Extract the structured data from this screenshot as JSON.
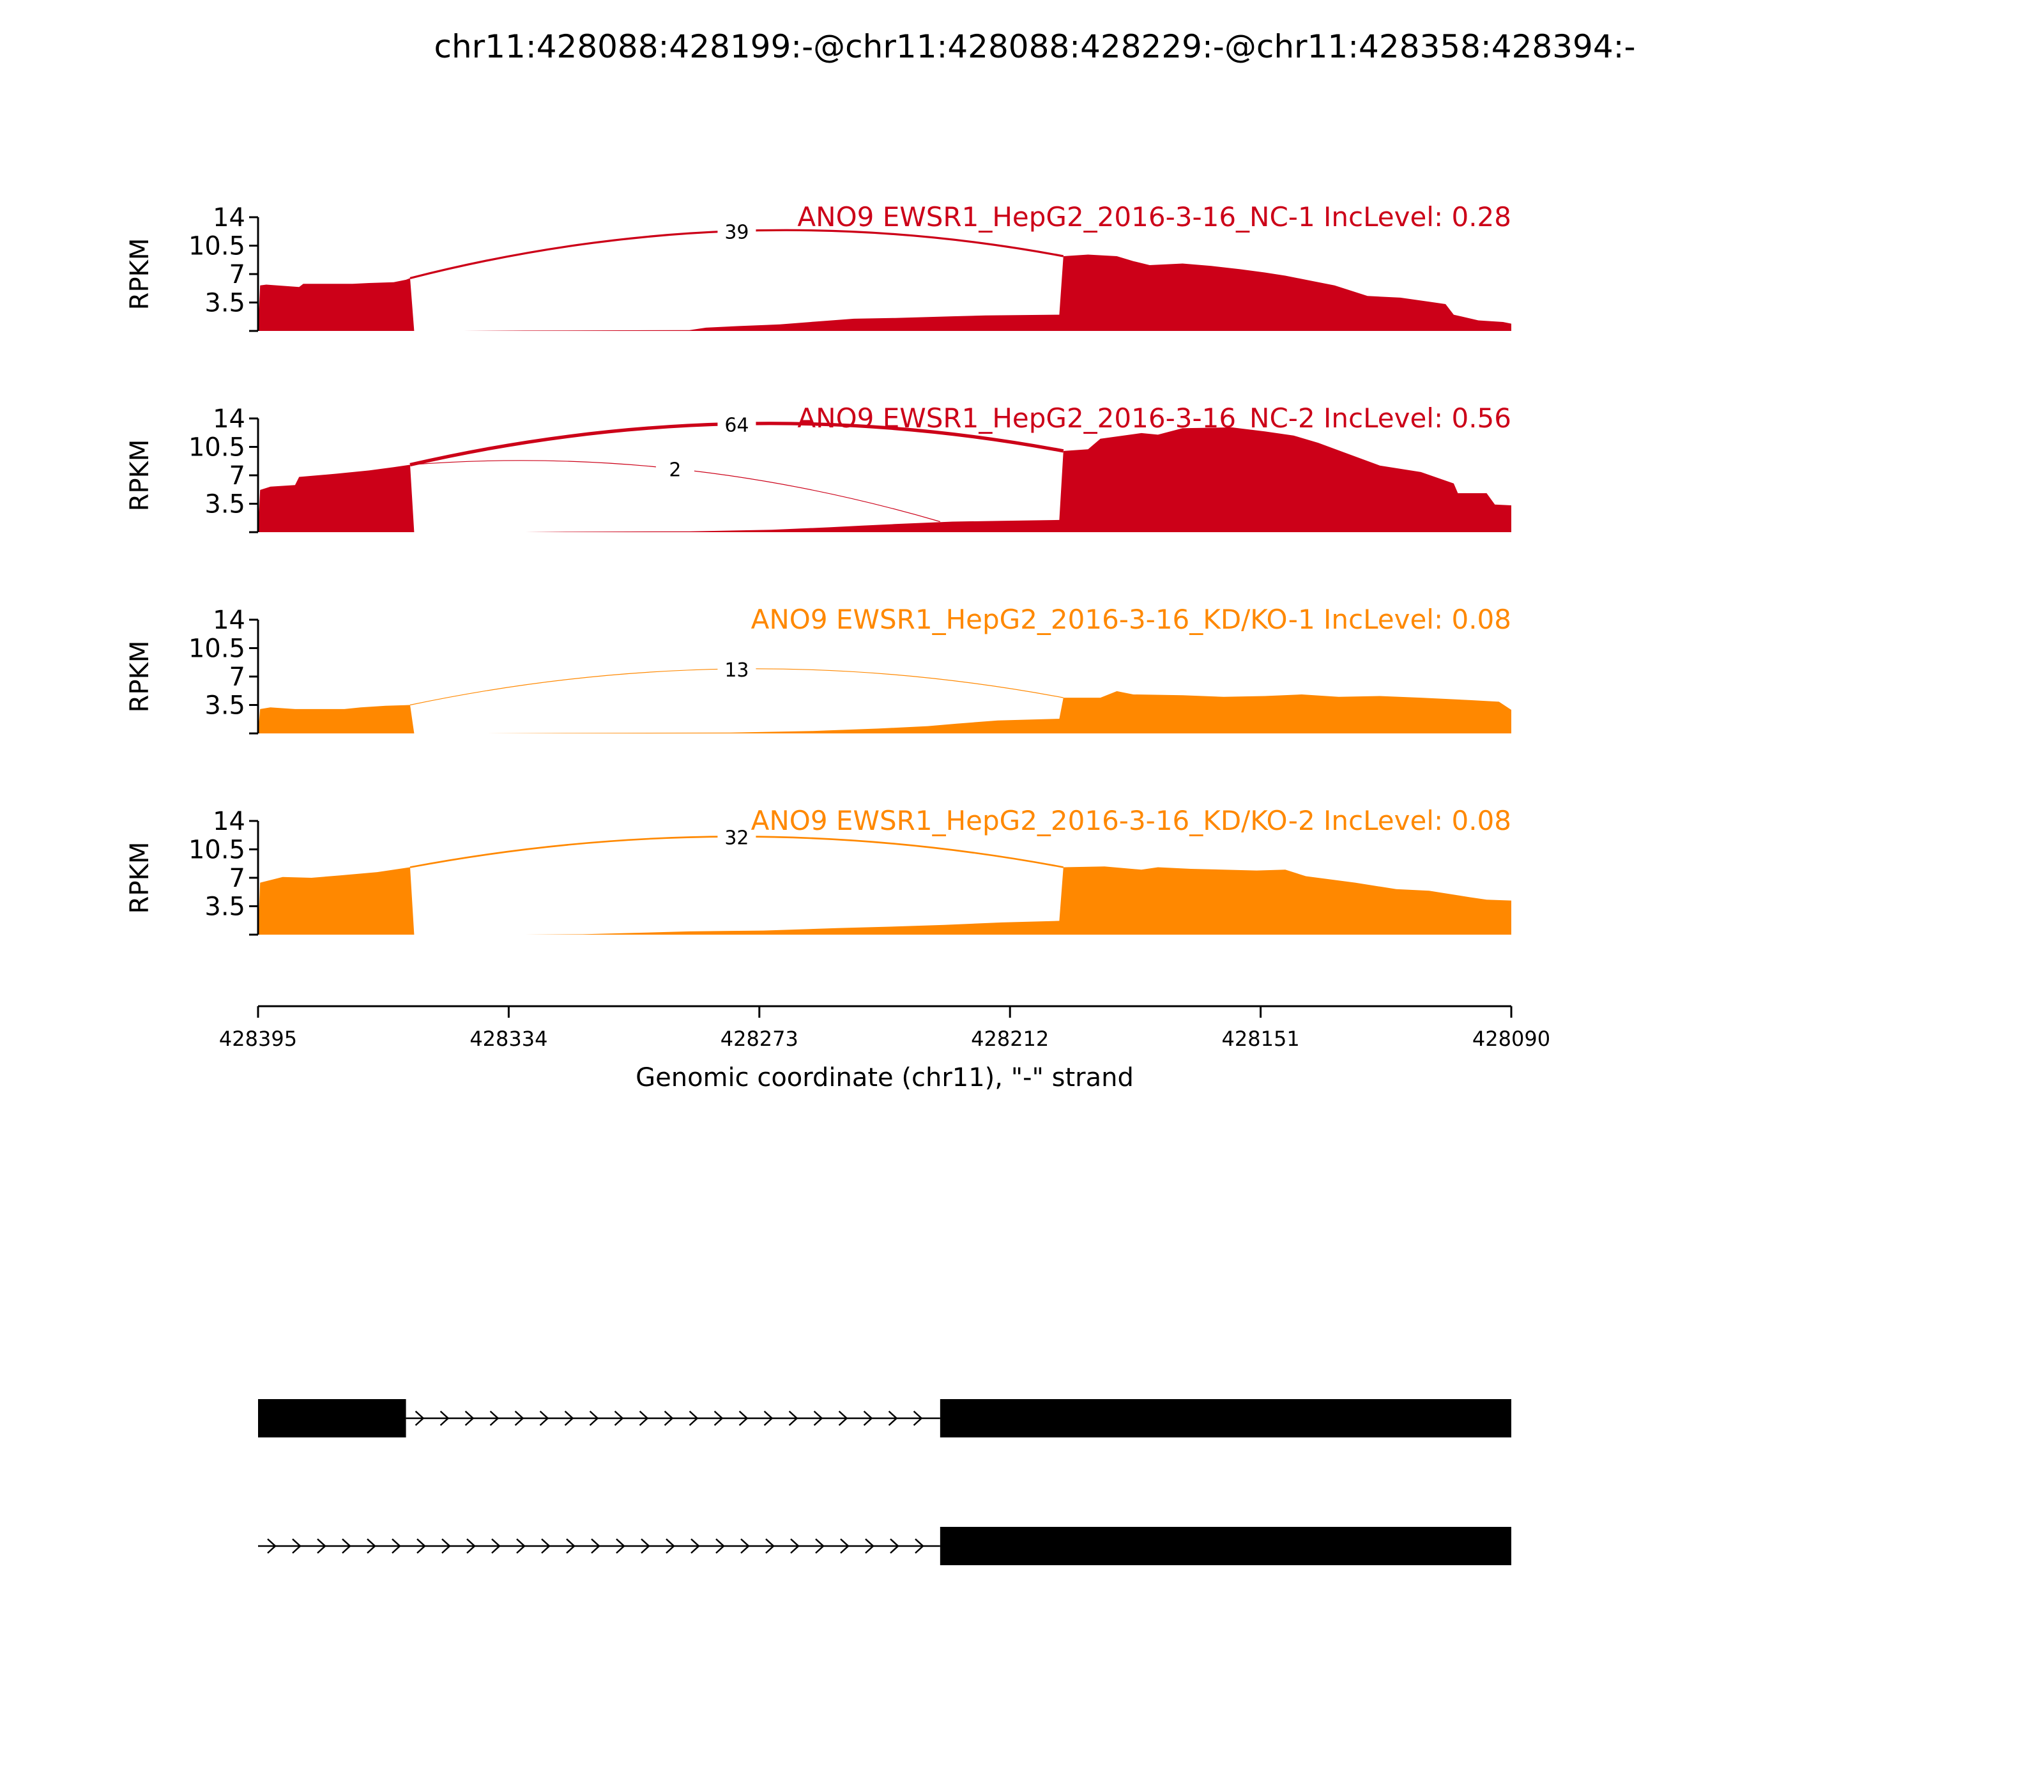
{
  "figure": {
    "title": "chr11:428088:428199:-@chr11:428088:428229:-@chr11:428358:428394:-",
    "colors": {
      "nc": "#cc0018",
      "kd": "#ff8800",
      "axis": "#000000",
      "gene_model": "#000000"
    }
  },
  "chart_data": {
    "type": "area",
    "description_free": true,
    "x_axis": {
      "label": "Genomic coordinate (chr11), \"-\" strand",
      "range": [
        428395,
        428090
      ],
      "reversed": true,
      "ticks": [
        428395,
        428334,
        428273,
        428212,
        428151,
        428090
      ]
    },
    "y_axis": {
      "label": "RPKM",
      "range": [
        0,
        14
      ],
      "ticks": [
        "3.5",
        "7",
        "10.5",
        "14"
      ],
      "tick_values": [
        3.5,
        7,
        10.5,
        14
      ]
    },
    "panels": [
      {
        "label": "ANO9 EWSR1_HepG2_2016-3-16_NC-1 IncLevel: 0.28",
        "color_key": "nc",
        "coverage": [
          [
            428395,
            0
          ],
          [
            428394.5,
            5.6
          ],
          [
            428393,
            5.7
          ],
          [
            428385,
            5.4
          ],
          [
            428384,
            5.8
          ],
          [
            428372,
            5.8
          ],
          [
            428368,
            5.9
          ],
          [
            428362,
            6.0
          ],
          [
            428359,
            6.3
          ],
          [
            428358,
            6.5
          ],
          [
            428357,
            0
          ],
          [
            428345,
            0
          ],
          [
            428330,
            0.05
          ],
          [
            428290,
            0.1
          ],
          [
            428286,
            0.4
          ],
          [
            428278,
            0.6
          ],
          [
            428268,
            0.8
          ],
          [
            428258,
            1.2
          ],
          [
            428250,
            1.5
          ],
          [
            428240,
            1.6
          ],
          [
            428226,
            1.8
          ],
          [
            428218,
            1.9
          ],
          [
            428200,
            2.0
          ],
          [
            428199,
            9.2
          ],
          [
            428193,
            9.4
          ],
          [
            428186,
            9.2
          ],
          [
            428182,
            8.6
          ],
          [
            428178,
            8.1
          ],
          [
            428170,
            8.3
          ],
          [
            428163,
            8.0
          ],
          [
            428156,
            7.6
          ],
          [
            428150,
            7.2
          ],
          [
            428145,
            6.8
          ],
          [
            428140,
            6.3
          ],
          [
            428133,
            5.6
          ],
          [
            428125,
            4.3
          ],
          [
            428117,
            4.1
          ],
          [
            428110,
            3.6
          ],
          [
            428106,
            3.3
          ],
          [
            428104,
            2.0
          ],
          [
            428098,
            1.3
          ],
          [
            428092,
            1.1
          ],
          [
            428090,
            0.9
          ]
        ],
        "junctions": [
          {
            "from": 428358,
            "to": 428199,
            "count": "39",
            "count_value": 39
          }
        ]
      },
      {
        "label": "ANO9 EWSR1_HepG2_2016-3-16_NC-2 IncLevel: 0.56",
        "color_key": "nc",
        "coverage": [
          [
            428395,
            0
          ],
          [
            428394.5,
            5.2
          ],
          [
            428392,
            5.6
          ],
          [
            428386,
            5.8
          ],
          [
            428385,
            6.8
          ],
          [
            428376,
            7.2
          ],
          [
            428368,
            7.6
          ],
          [
            428362,
            8.0
          ],
          [
            428358,
            8.3
          ],
          [
            428357,
            0
          ],
          [
            428330,
            0
          ],
          [
            428320,
            0.05
          ],
          [
            428290,
            0.1
          ],
          [
            428270,
            0.3
          ],
          [
            428256,
            0.6
          ],
          [
            428248,
            0.8
          ],
          [
            428240,
            1.0
          ],
          [
            428226,
            1.3
          ],
          [
            428214,
            1.4
          ],
          [
            428200,
            1.5
          ],
          [
            428199,
            10.0
          ],
          [
            428193,
            10.2
          ],
          [
            428190,
            11.5
          ],
          [
            428180,
            12.2
          ],
          [
            428176,
            12.0
          ],
          [
            428170,
            12.8
          ],
          [
            428158,
            12.9
          ],
          [
            428150,
            12.4
          ],
          [
            428143,
            11.9
          ],
          [
            428137,
            11.0
          ],
          [
            428130,
            9.7
          ],
          [
            428122,
            8.2
          ],
          [
            428112,
            7.4
          ],
          [
            428104,
            6.0
          ],
          [
            428103,
            4.8
          ],
          [
            428096,
            4.8
          ],
          [
            428094,
            3.4
          ],
          [
            428090,
            3.3
          ]
        ],
        "junctions": [
          {
            "from": 428358,
            "to": 428199,
            "count": "64",
            "count_value": 64
          },
          {
            "from": 428358,
            "to": 428229,
            "count": "2",
            "count_value": 2
          }
        ]
      },
      {
        "label": "ANO9 EWSR1_HepG2_2016-3-16_KD/KO-1 IncLevel: 0.08",
        "color_key": "kd",
        "coverage": [
          [
            428395,
            0
          ],
          [
            428394.5,
            3.0
          ],
          [
            428392,
            3.2
          ],
          [
            428386,
            3.0
          ],
          [
            428374,
            3.0
          ],
          [
            428370,
            3.2
          ],
          [
            428364,
            3.4
          ],
          [
            428358,
            3.5
          ],
          [
            428357,
            0
          ],
          [
            428340,
            0
          ],
          [
            428320,
            0.05
          ],
          [
            428280,
            0.1
          ],
          [
            428260,
            0.3
          ],
          [
            428244,
            0.6
          ],
          [
            428232,
            0.9
          ],
          [
            428225,
            1.2
          ],
          [
            428215,
            1.6
          ],
          [
            428200,
            1.8
          ],
          [
            428199,
            4.4
          ],
          [
            428190,
            4.4
          ],
          [
            428186,
            5.2
          ],
          [
            428182,
            4.8
          ],
          [
            428170,
            4.7
          ],
          [
            428160,
            4.5
          ],
          [
            428150,
            4.6
          ],
          [
            428141,
            4.8
          ],
          [
            428132,
            4.5
          ],
          [
            428122,
            4.6
          ],
          [
            428112,
            4.4
          ],
          [
            428100,
            4.1
          ],
          [
            428093,
            3.9
          ],
          [
            428090,
            2.9
          ]
        ],
        "junctions": [
          {
            "from": 428358,
            "to": 428199,
            "count": "13",
            "count_value": 13
          }
        ]
      },
      {
        "label": "ANO9 EWSR1_HepG2_2016-3-16_KD/KO-2 IncLevel: 0.08",
        "color_key": "kd",
        "coverage": [
          [
            428395,
            0
          ],
          [
            428394.5,
            6.4
          ],
          [
            428389,
            7.1
          ],
          [
            428382,
            7.0
          ],
          [
            428375,
            7.3
          ],
          [
            428366,
            7.7
          ],
          [
            428358,
            8.3
          ],
          [
            428357,
            0
          ],
          [
            428330,
            0
          ],
          [
            428316,
            0.05
          ],
          [
            428290,
            0.4
          ],
          [
            428272,
            0.5
          ],
          [
            428254,
            0.8
          ],
          [
            428240,
            1.0
          ],
          [
            428228,
            1.2
          ],
          [
            428214,
            1.5
          ],
          [
            428200,
            1.7
          ],
          [
            428199,
            8.3
          ],
          [
            428189,
            8.4
          ],
          [
            428180,
            8.0
          ],
          [
            428176,
            8.3
          ],
          [
            428168,
            8.1
          ],
          [
            428152,
            7.9
          ],
          [
            428145,
            8.0
          ],
          [
            428140,
            7.2
          ],
          [
            428128,
            6.4
          ],
          [
            428118,
            5.6
          ],
          [
            428110,
            5.4
          ],
          [
            428100,
            4.6
          ],
          [
            428096,
            4.3
          ],
          [
            428090,
            4.2
          ]
        ],
        "junctions": [
          {
            "from": 428358,
            "to": 428199,
            "count": "32",
            "count_value": 32
          }
        ]
      }
    ],
    "gene_models": [
      {
        "strand": "-",
        "exons": [
          [
            428395,
            428359
          ],
          [
            428229,
            428090
          ]
        ],
        "intron": [
          428359,
          428229
        ]
      },
      {
        "strand": "-",
        "exons": [
          [
            428229,
            428090
          ]
        ],
        "intron": [
          428395,
          428229
        ]
      }
    ]
  }
}
